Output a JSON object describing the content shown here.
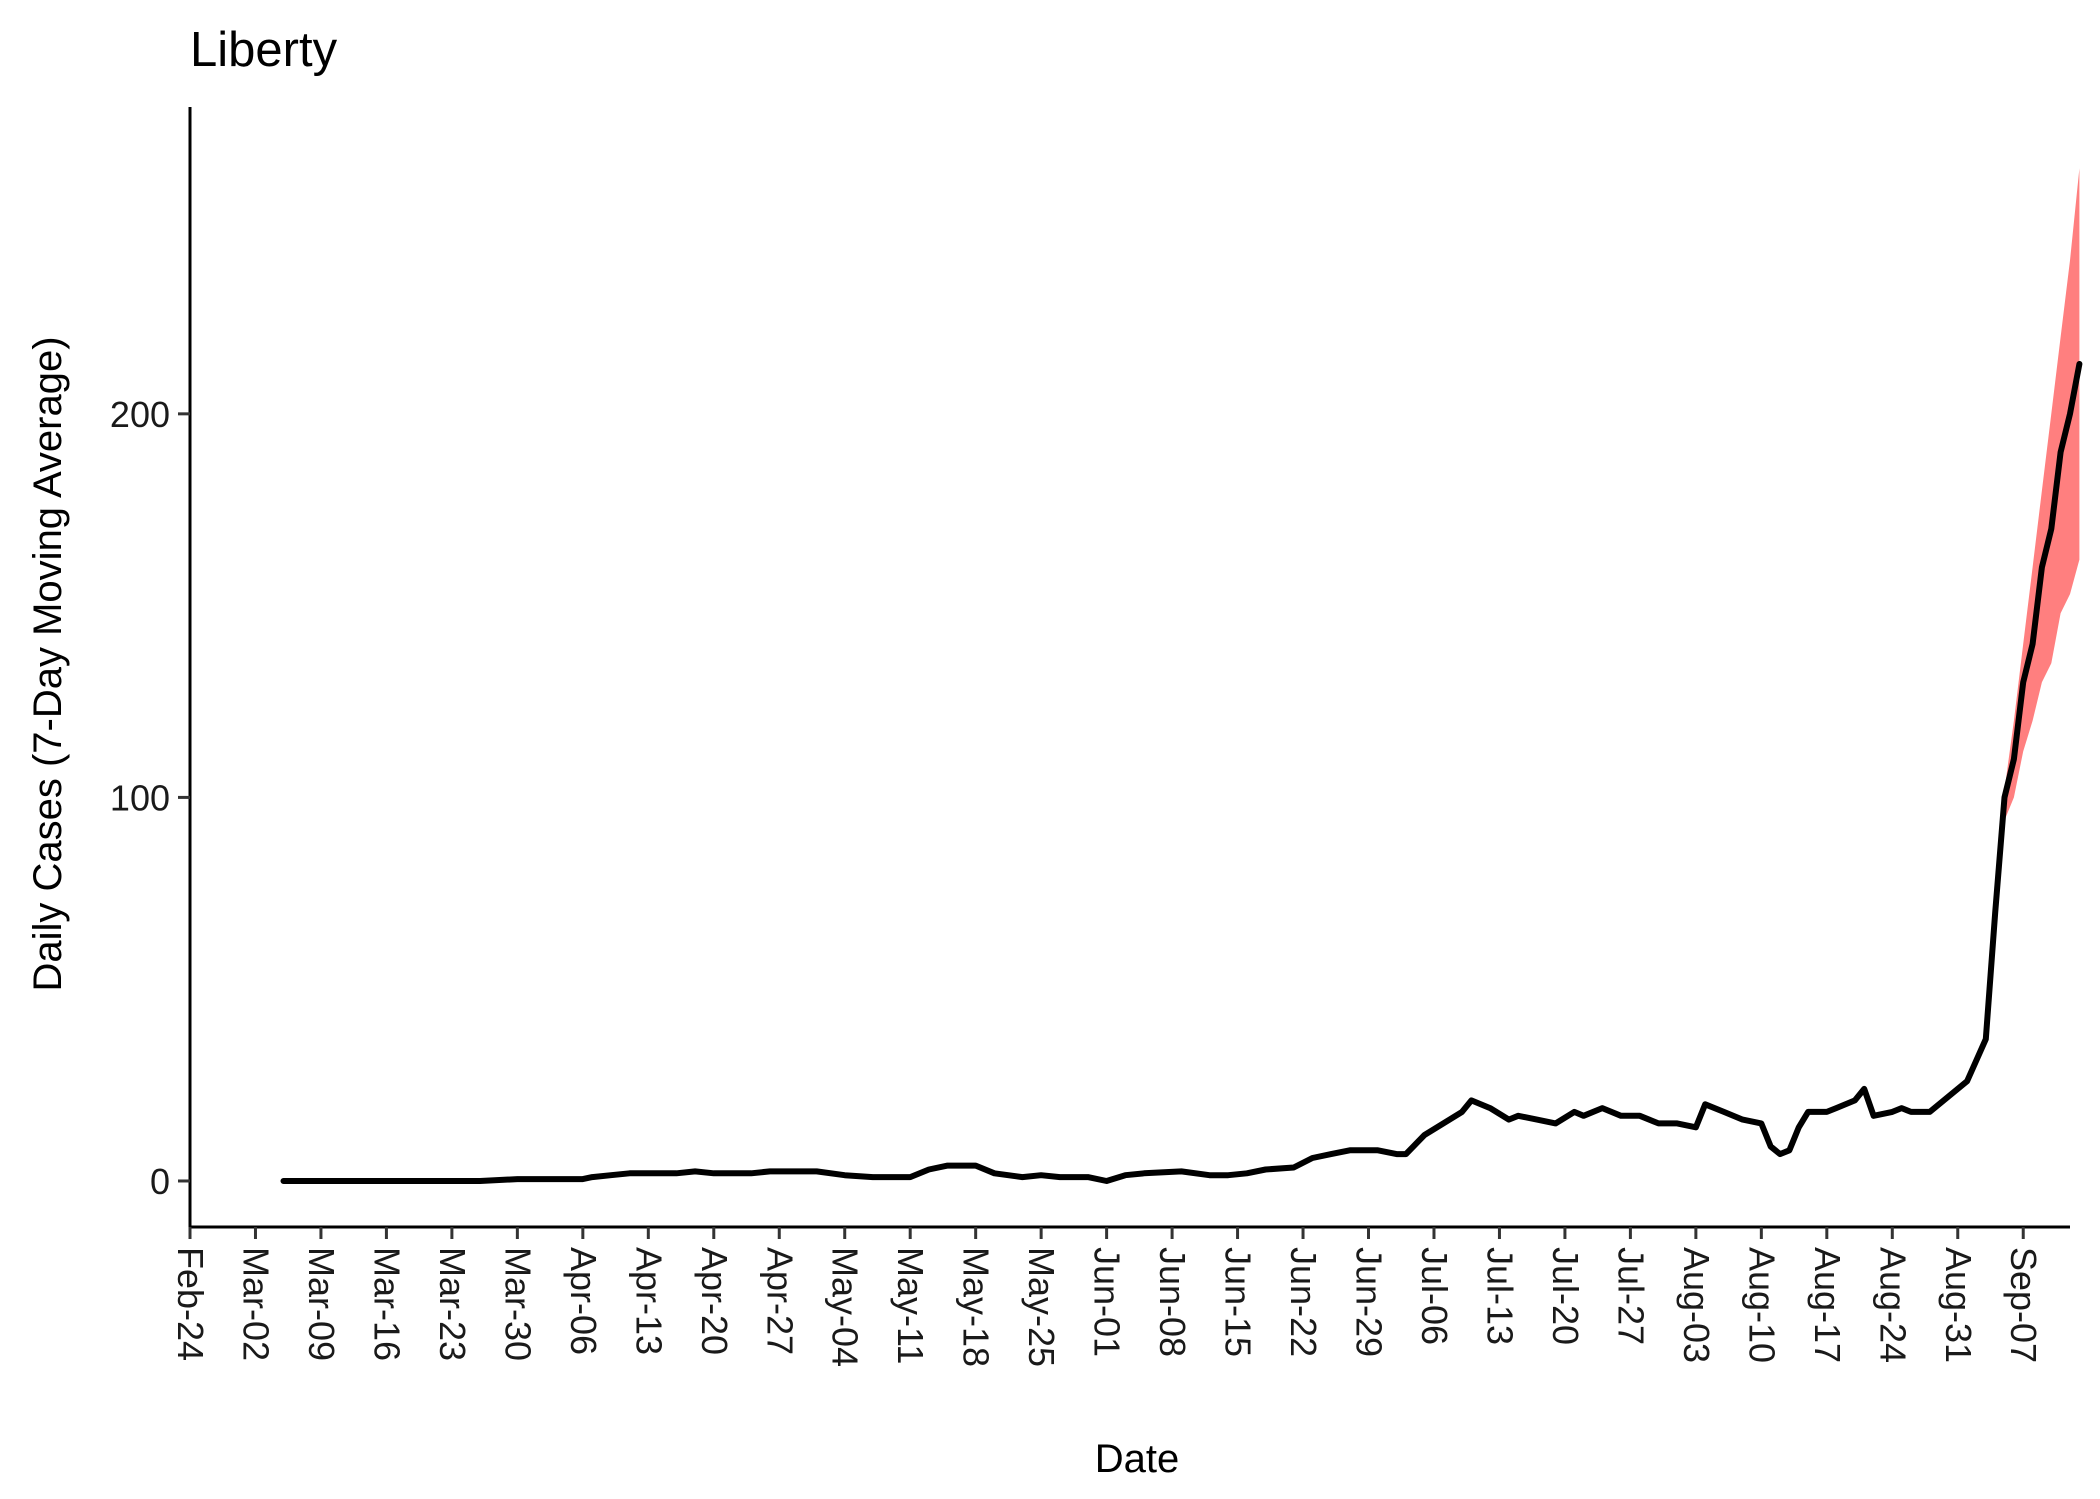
{
  "chart_data": {
    "type": "line",
    "title": "Liberty",
    "xlabel": "Date",
    "ylabel": "Daily Cases (7-Day Moving Average)",
    "x_ticks": [
      "Feb-24",
      "Mar-02",
      "Mar-09",
      "Mar-16",
      "Mar-23",
      "Mar-30",
      "Apr-06",
      "Apr-13",
      "Apr-20",
      "Apr-27",
      "May-04",
      "May-11",
      "May-18",
      "May-25",
      "Jun-01",
      "Jun-08",
      "Jun-15",
      "Jun-22",
      "Jun-29",
      "Jul-06",
      "Jul-13",
      "Jul-20",
      "Jul-27",
      "Aug-03",
      "Aug-10",
      "Aug-17",
      "Aug-24",
      "Aug-31",
      "Sep-07"
    ],
    "x_start": "2020-02-24",
    "y_ticks": [
      0,
      100,
      200
    ],
    "ylim": [
      -12,
      280
    ],
    "xlim": [
      "2020-02-24",
      "2020-09-12"
    ],
    "grid": false,
    "series": [
      {
        "color": "#000000",
        "points": [
          [
            "2020-03-05",
            0
          ],
          [
            "2020-03-12",
            0
          ],
          [
            "2020-03-19",
            0
          ],
          [
            "2020-03-26",
            0
          ],
          [
            "2020-03-30",
            0.5
          ],
          [
            "2020-04-06",
            0.5
          ],
          [
            "2020-04-07",
            1
          ],
          [
            "2020-04-09",
            1.5
          ],
          [
            "2020-04-11",
            2
          ],
          [
            "2020-04-16",
            2
          ],
          [
            "2020-04-18",
            2.5
          ],
          [
            "2020-04-20",
            2
          ],
          [
            "2020-04-24",
            2
          ],
          [
            "2020-04-26",
            2.5
          ],
          [
            "2020-05-01",
            2.5
          ],
          [
            "2020-05-04",
            1.5
          ],
          [
            "2020-05-07",
            1
          ],
          [
            "2020-05-11",
            1
          ],
          [
            "2020-05-13",
            3
          ],
          [
            "2020-05-15",
            4
          ],
          [
            "2020-05-18",
            4
          ],
          [
            "2020-05-20",
            2
          ],
          [
            "2020-05-23",
            1
          ],
          [
            "2020-05-25",
            1.5
          ],
          [
            "2020-05-27",
            1
          ],
          [
            "2020-05-30",
            1
          ],
          [
            "2020-06-01",
            0
          ],
          [
            "2020-06-03",
            1.5
          ],
          [
            "2020-06-05",
            2
          ],
          [
            "2020-06-09",
            2.5
          ],
          [
            "2020-06-12",
            1.5
          ],
          [
            "2020-06-14",
            1.5
          ],
          [
            "2020-06-16",
            2
          ],
          [
            "2020-06-18",
            3
          ],
          [
            "2020-06-21",
            3.5
          ],
          [
            "2020-06-23",
            6
          ],
          [
            "2020-06-25",
            7
          ],
          [
            "2020-06-27",
            8
          ],
          [
            "2020-06-30",
            8
          ],
          [
            "2020-07-02",
            7
          ],
          [
            "2020-07-03",
            7
          ],
          [
            "2020-07-05",
            12
          ],
          [
            "2020-07-07",
            15
          ],
          [
            "2020-07-09",
            18
          ],
          [
            "2020-07-10",
            21
          ],
          [
            "2020-07-12",
            19
          ],
          [
            "2020-07-14",
            16
          ],
          [
            "2020-07-15",
            17
          ],
          [
            "2020-07-17",
            16
          ],
          [
            "2020-07-19",
            15
          ],
          [
            "2020-07-21",
            18
          ],
          [
            "2020-07-22",
            17
          ],
          [
            "2020-07-24",
            19
          ],
          [
            "2020-07-26",
            17
          ],
          [
            "2020-07-28",
            17
          ],
          [
            "2020-07-30",
            15
          ],
          [
            "2020-08-01",
            15
          ],
          [
            "2020-08-03",
            14
          ],
          [
            "2020-08-04",
            20
          ],
          [
            "2020-08-06",
            18
          ],
          [
            "2020-08-08",
            16
          ],
          [
            "2020-08-10",
            15
          ],
          [
            "2020-08-11",
            9
          ],
          [
            "2020-08-12",
            7
          ],
          [
            "2020-08-13",
            8
          ],
          [
            "2020-08-14",
            14
          ],
          [
            "2020-08-15",
            18
          ],
          [
            "2020-08-17",
            18
          ],
          [
            "2020-08-18",
            19
          ],
          [
            "2020-08-20",
            21
          ],
          [
            "2020-08-21",
            24
          ],
          [
            "2020-08-22",
            17
          ],
          [
            "2020-08-24",
            18
          ],
          [
            "2020-08-25",
            19
          ],
          [
            "2020-08-26",
            18
          ],
          [
            "2020-08-28",
            18
          ],
          [
            "2020-08-30",
            22
          ],
          [
            "2020-09-01",
            26
          ],
          [
            "2020-09-03",
            37
          ],
          [
            "2020-09-04",
            70
          ],
          [
            "2020-09-05",
            100
          ],
          [
            "2020-09-06",
            110
          ],
          [
            "2020-09-07",
            130
          ],
          [
            "2020-09-08",
            140
          ],
          [
            "2020-09-09",
            160
          ],
          [
            "2020-09-10",
            170
          ],
          [
            "2020-09-11",
            190
          ],
          [
            "2020-09-12",
            200
          ],
          [
            "2020-09-13",
            213
          ]
        ]
      }
    ],
    "band": {
      "color": "#ff7f7f",
      "points": [
        [
          "2020-09-05",
          102,
          94
        ],
        [
          "2020-09-06",
          120,
          100
        ],
        [
          "2020-09-07",
          140,
          112
        ],
        [
          "2020-09-08",
          160,
          120
        ],
        [
          "2020-09-09",
          180,
          130
        ],
        [
          "2020-09-10",
          200,
          135
        ],
        [
          "2020-09-11",
          220,
          148
        ],
        [
          "2020-09-12",
          240,
          153
        ],
        [
          "2020-09-13",
          264,
          162
        ]
      ]
    }
  }
}
